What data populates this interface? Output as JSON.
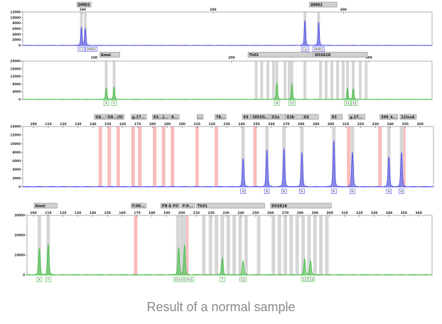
{
  "caption": "Result of a normal sample",
  "chart_data": [
    {
      "type": "line",
      "color": "#4a4aee",
      "x_range": [
        54,
        368
      ],
      "x_ticks": [
        100,
        200,
        300
      ],
      "y_range": [
        0,
        12000
      ],
      "y_ticks": [
        0,
        2000,
        4000,
        6000,
        8000,
        10000,
        12000
      ],
      "markers": [
        {
          "label": "DMD5",
          "from": 95.6,
          "to": 106
        },
        {
          "label": "DMD2",
          "from": 274,
          "to": 295
        }
      ],
      "grey_bins": [
        99,
        102,
        270.5,
        281
      ],
      "pink_bins": [],
      "peaks": [
        {
          "x": 99,
          "y": 6200,
          "label": "C1"
        },
        {
          "x": 102,
          "y": 5800,
          "label": "DMD5"
        },
        {
          "x": 270.5,
          "y": 8500,
          "label": "Cal"
        },
        {
          "x": 281,
          "y": 7900,
          "label": "DMD5"
        }
      ]
    },
    {
      "type": "line",
      "color": "#3cbf3c",
      "x_range": [
        48,
        346
      ],
      "x_ticks": [
        100,
        200,
        300
      ],
      "y_range": [
        0,
        20000
      ],
      "y_ticks": [
        0,
        4000,
        8000,
        12000,
        16000,
        20000
      ],
      "markers": [
        {
          "label": "Amel",
          "from": 104,
          "to": 118.6
        },
        {
          "label": "Th01",
          "from": 212,
          "to": 259.6
        },
        {
          "label": "D5S818",
          "from": 259.6,
          "to": 298.5
        }
      ],
      "grey_bins": [
        108.8,
        114.5,
        218,
        222,
        226.4,
        230.6,
        233,
        238.9,
        242,
        244,
        253.4,
        264.8,
        268.9,
        273,
        277.2,
        281.3,
        284.4,
        288.6,
        293.8,
        298
      ],
      "pink_bins": [],
      "peaks": [
        {
          "x": 108.8,
          "y": 5800,
          "label": "X"
        },
        {
          "x": 114.5,
          "y": 6200,
          "label": "Y"
        },
        {
          "x": 233,
          "y": 8100,
          "label": "9"
        },
        {
          "x": 244,
          "y": 7400,
          "label": "11"
        },
        {
          "x": 284.4,
          "y": 5500,
          "label": "11"
        },
        {
          "x": 288.6,
          "y": 5100,
          "label": "12"
        }
      ]
    },
    {
      "type": "line",
      "color": "#4a4aee",
      "x_range": [
        92.8,
        369
      ],
      "x_ticks": [
        100,
        110,
        120,
        130,
        140,
        150,
        160,
        170,
        180,
        190,
        200,
        210,
        220,
        230,
        240,
        250,
        260,
        270,
        280,
        290,
        300,
        310,
        320,
        330,
        340,
        350,
        360
      ],
      "y_range": [
        0,
        14000
      ],
      "y_ticks": [
        0,
        2000,
        4000,
        6000,
        8000,
        10000,
        12000,
        14000
      ],
      "markers": [
        {
          "label": "G8...",
          "from": 141,
          "to": 147.5
        },
        {
          "label": "G8...(0)",
          "from": 149,
          "to": 156.6
        },
        {
          "label": "g.27...",
          "from": 165.7,
          "to": 176
        },
        {
          "label": "83...]...",
          "from": 180,
          "to": 191
        },
        {
          "label": "8...",
          "from": 192,
          "to": 198
        },
        {
          "label": "...",
          "from": 210,
          "to": 214
        },
        {
          "label": "78...",
          "from": 222,
          "to": 229.5
        },
        {
          "label": "E4",
          "from": 240.5,
          "to": 246
        },
        {
          "label": "3055G...",
          "from": 246,
          "to": 256
        },
        {
          "label": "E2a",
          "from": 256.4,
          "to": 266
        },
        {
          "label": "E2b",
          "from": 266,
          "to": 277
        },
        {
          "label": "E6",
          "from": 279,
          "to": 289.4
        },
        {
          "label": "E5",
          "from": 300,
          "to": 307.7
        },
        {
          "label": "g.27...",
          "from": 312,
          "to": 323
        },
        {
          "label": "399_4...",
          "from": 333,
          "to": 345
        },
        {
          "label": "22insA",
          "from": 346.5,
          "to": 357.5
        }
      ],
      "grey_bins": [
        241,
        257,
        268.5,
        280.5,
        302,
        314.5,
        339,
        347.5
      ],
      "pink_bins": [
        145,
        151,
        157,
        167,
        171.5,
        181.5,
        187.5,
        193.5,
        210,
        223,
        249,
        312,
        333,
        349
      ],
      "peaks": [
        {
          "x": 241,
          "y": 6200,
          "label": "N"
        },
        {
          "x": 257,
          "y": 8100,
          "label": "N"
        },
        {
          "x": 268.5,
          "y": 8400,
          "label": "N"
        },
        {
          "x": 280.5,
          "y": 7500,
          "label": "N"
        },
        {
          "x": 302,
          "y": 10200,
          "label": "N"
        },
        {
          "x": 314.5,
          "y": 7500,
          "label": "N"
        },
        {
          "x": 339,
          "y": 6500,
          "label": "N"
        },
        {
          "x": 347.5,
          "y": 7500,
          "label": "N"
        }
      ]
    },
    {
      "type": "line",
      "color": "#3cbf3c",
      "x_range": [
        95.7,
        369
      ],
      "x_ticks": [
        100,
        110,
        120,
        130,
        140,
        150,
        160,
        170,
        180,
        190,
        200,
        210,
        220,
        230,
        240,
        250,
        260,
        270,
        280,
        290,
        300,
        310,
        320,
        330,
        340,
        350,
        360
      ],
      "y_range": [
        0,
        30000
      ],
      "y_ticks": [
        0,
        10000,
        20000,
        30000
      ],
      "markers": [
        {
          "label": "Amel",
          "from": 100.5,
          "to": 116
        },
        {
          "label": "F:06...",
          "from": 166,
          "to": 176
        },
        {
          "label": "FN & FO",
          "from": 186,
          "to": 199
        },
        {
          "label": "F:0...",
          "from": 200,
          "to": 209
        },
        {
          "label": "Th01",
          "from": 210,
          "to": 256
        },
        {
          "label": "D5S818",
          "from": 260,
          "to": 301
        }
      ],
      "grey_bins": [
        104,
        110,
        197.5,
        200,
        202,
        215,
        219.5,
        223.5,
        227.5,
        231.5,
        235.5,
        239.5,
        243.5,
        252,
        262,
        266,
        270,
        274,
        278,
        282,
        286,
        290,
        294,
        298
      ],
      "pink_bins": [
        169,
        203.5
      ],
      "peaks": [
        {
          "x": 104,
          "y": 12400,
          "label": "X"
        },
        {
          "x": 110,
          "y": 14500,
          "label": "Y"
        },
        {
          "x": 198,
          "y": 13000,
          "label": "Chr2"
        },
        {
          "x": 202,
          "y": 14000,
          "label": "Chr1"
        },
        {
          "x": 227.5,
          "y": 8000,
          "label": "7"
        },
        {
          "x": 241.5,
          "y": 6500,
          "label": "11"
        },
        {
          "x": 283,
          "y": 7500,
          "label": "11"
        },
        {
          "x": 287,
          "y": 6600,
          "label": "12"
        }
      ]
    }
  ]
}
